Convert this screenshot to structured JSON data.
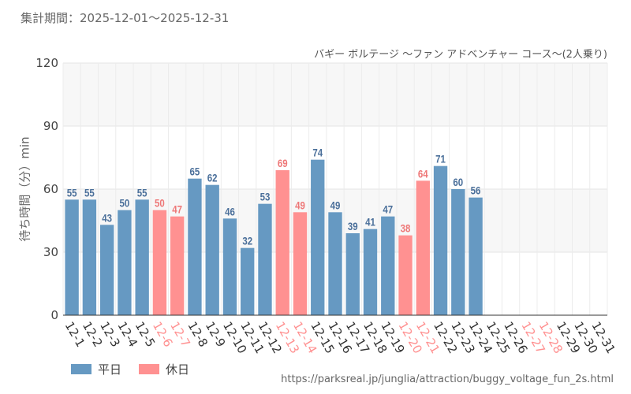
{
  "header": {
    "period_label": "集計期間：2025-12-01～2025-12-31"
  },
  "chart_data": {
    "type": "bar",
    "title": "バギー ボルテージ ～ファン アドベンチャー コース～(2人乗り)",
    "ylabel": "待ち時間（分）min",
    "xlabel": "",
    "ylim": [
      0,
      120
    ],
    "yticks": [
      0,
      30,
      60,
      90,
      120
    ],
    "grid": true,
    "categories": [
      "12-1",
      "12-2",
      "12-3",
      "12-4",
      "12-5",
      "12-6",
      "12-7",
      "12-8",
      "12-9",
      "12-10",
      "12-11",
      "12-12",
      "12-13",
      "12-14",
      "12-15",
      "12-16",
      "12-17",
      "12-18",
      "12-19",
      "12-20",
      "12-21",
      "12-22",
      "12-23",
      "12-24",
      "12-25",
      "12-26",
      "12-27",
      "12-28",
      "12-29",
      "12-30",
      "12-31"
    ],
    "values": [
      55,
      55,
      43,
      50,
      55,
      50,
      47,
      65,
      62,
      46,
      32,
      53,
      69,
      49,
      74,
      49,
      39,
      41,
      47,
      38,
      64,
      71,
      60,
      56,
      null,
      null,
      null,
      null,
      null,
      null,
      null
    ],
    "holiday": [
      false,
      false,
      false,
      false,
      false,
      true,
      true,
      false,
      false,
      false,
      false,
      false,
      true,
      true,
      false,
      false,
      false,
      false,
      false,
      true,
      true,
      false,
      false,
      false,
      false,
      false,
      true,
      true,
      false,
      false,
      false
    ],
    "legend": [
      {
        "name": "平日",
        "color": "#6699c2"
      },
      {
        "name": "休日",
        "color": "#ff9191"
      }
    ],
    "legend_position": "bottom-left",
    "colors": {
      "weekday": "#6699c2",
      "holiday": "#ff9191",
      "weekday_text": "#4a6f9a",
      "holiday_text": "#ee7777",
      "band": "#f7f7f7"
    }
  },
  "footer": {
    "source_url": "https://parksreal.jp/junglia/attraction/buggy_voltage_fun_2s.html"
  }
}
